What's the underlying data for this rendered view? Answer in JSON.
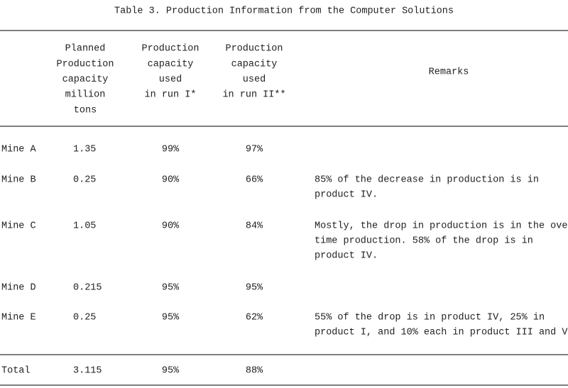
{
  "title": "Table 3.  Production Information from the Computer Solutions",
  "table": {
    "header": {
      "planned": [
        "Planned",
        "Production",
        "capacity",
        "million",
        "tons"
      ],
      "run1": [
        "Production",
        "capacity",
        "used",
        "in run I*"
      ],
      "run2": [
        "Production",
        "capacity",
        "used",
        "in run II**"
      ],
      "remarks": "Remarks"
    },
    "rows": [
      {
        "mine": "Mine A",
        "planned": 1.35,
        "run1": "99%",
        "run2": "97%"
      },
      {
        "mine": "Mine B",
        "planned": 0.25,
        "run1": "90%",
        "run2": "66%",
        "remarks": [
          "85% of the decrease in production is in",
          "product IV."
        ]
      },
      {
        "mine": "Mine C",
        "planned": 1.05,
        "run1": "90%",
        "run2": "84%",
        "remarks": [
          "Mostly, the drop in production is in the over-",
          "time production.  58% of the drop is in",
          "product IV."
        ]
      },
      {
        "mine": "Mine D",
        "planned": 0.215,
        "run1": "95%",
        "run2": "95%"
      },
      {
        "mine": "Mine E",
        "planned": 0.25,
        "run1": "95%",
        "run2": "62%",
        "remarks": [
          "55% of the drop is in product IV, 25% in",
          "product I, and 10% each in product III and V"
        ]
      }
    ],
    "total": {
      "mine": "Total",
      "planned": 3.115,
      "run1": "95%",
      "run2": "88%"
    }
  }
}
